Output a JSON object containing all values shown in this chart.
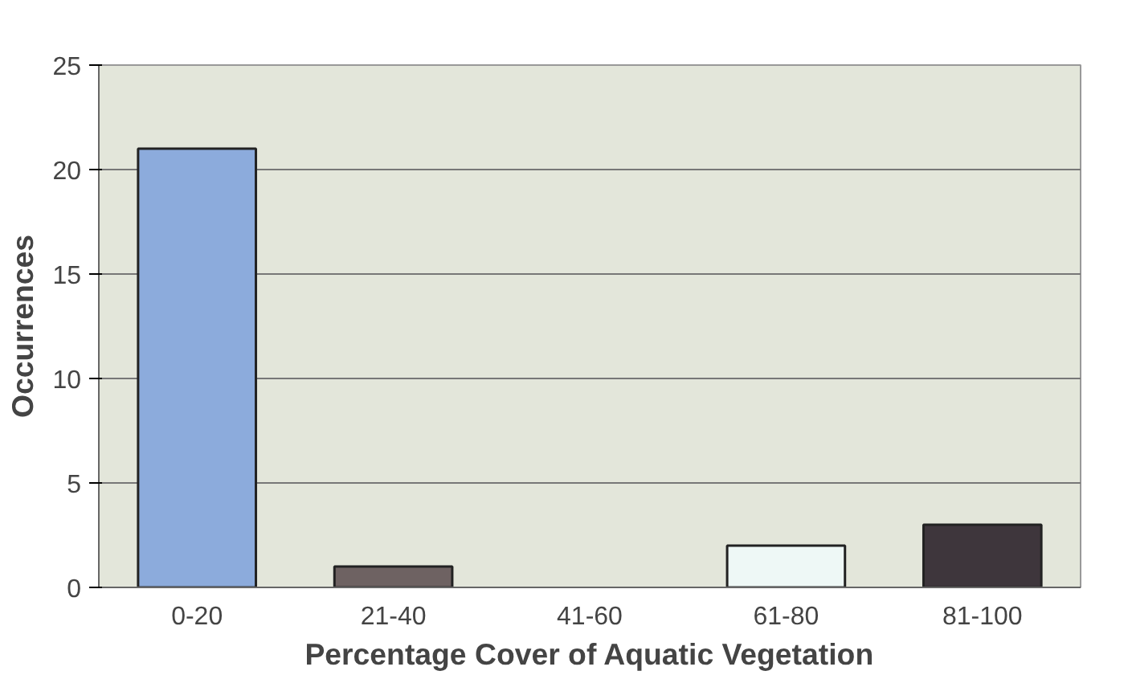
{
  "chart_data": {
    "type": "bar",
    "xlabel": "Percentage Cover of Aquatic Vegetation",
    "ylabel": "Occurrences",
    "categories": [
      "0-20",
      "21-40",
      "41-60",
      "61-80",
      "81-100"
    ],
    "values": [
      21,
      1,
      0,
      2,
      3
    ],
    "colors": [
      "#8cabdc",
      "#6e6262",
      null,
      "#eef8f6",
      "#3e363c"
    ],
    "ylim": [
      0,
      25
    ],
    "yticks": [
      0,
      5,
      10,
      15,
      20,
      25
    ],
    "grid": "y"
  }
}
